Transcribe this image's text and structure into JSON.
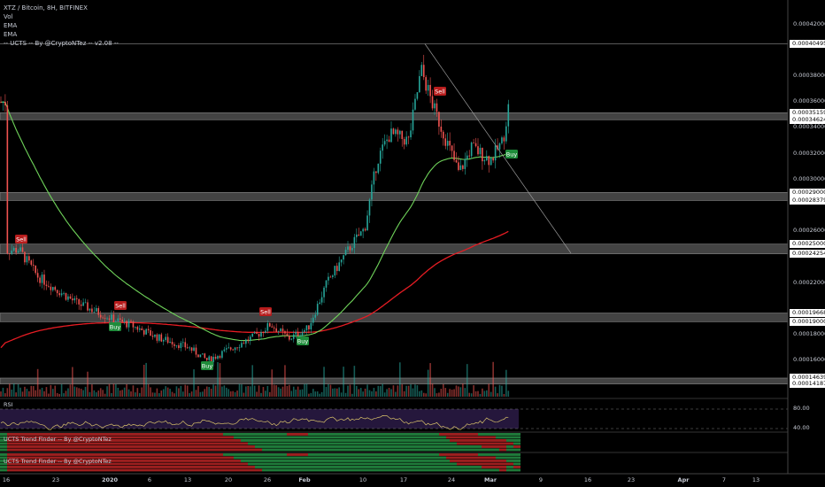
{
  "legend": {
    "pair": "XTZ / Bitcoin, 8H, BITFINEX",
    "line2": "Vol",
    "line3": "EMA",
    "line4": "EMA",
    "line5": "-- UCTS -- By @CryptoNTez -- v2.08 --"
  },
  "panes": {
    "rsi_label": "RSI",
    "trend1_label": "UCTS Trend Finder -- By @CryptoNTez",
    "trend2_label": "UCTS Trend Finder -- By @CryptoNTez"
  },
  "price_axis": {
    "labels": [
      "0.00042000",
      "0.00038000",
      "0.00036000",
      "0.00034000",
      "0.00032000",
      "0.00030000",
      "0.00026000",
      "0.00022000",
      "0.00018000",
      "0.00016000"
    ],
    "highlighted": [
      "0.00040495",
      "0.00035159",
      "0.00034624",
      "0.00029000",
      "0.00028379",
      "0.00025000",
      "0.00024254",
      "0.00019668",
      "0.00019000",
      "0.00014639",
      "0.00014187"
    ]
  },
  "rsi_axis": {
    "labels": [
      "80.00",
      "40.00"
    ]
  },
  "date_axis": {
    "labels": [
      {
        "text": "16",
        "bold": false
      },
      {
        "text": "23",
        "bold": false
      },
      {
        "text": "2020",
        "bold": true
      },
      {
        "text": "6",
        "bold": false
      },
      {
        "text": "13",
        "bold": false
      },
      {
        "text": "20",
        "bold": false
      },
      {
        "text": "26",
        "bold": false
      },
      {
        "text": "Feb",
        "bold": true
      },
      {
        "text": "10",
        "bold": false
      },
      {
        "text": "17",
        "bold": false
      },
      {
        "text": "24",
        "bold": false
      },
      {
        "text": "Mar",
        "bold": true
      },
      {
        "text": "9",
        "bold": false
      },
      {
        "text": "16",
        "bold": false
      },
      {
        "text": "23",
        "bold": false
      },
      {
        "text": "Apr",
        "bold": true
      },
      {
        "text": "7",
        "bold": false
      },
      {
        "text": "13",
        "bold": false
      }
    ]
  },
  "signals": [
    {
      "label": "Sell",
      "type": "sell"
    },
    {
      "label": "Sell",
      "type": "sell"
    },
    {
      "label": "Buy",
      "type": "buy"
    },
    {
      "label": "Buy",
      "type": "buy"
    },
    {
      "label": "Sell",
      "type": "sell"
    },
    {
      "label": "Buy",
      "type": "buy"
    },
    {
      "label": "Sell",
      "type": "sell"
    },
    {
      "label": "Buy",
      "type": "buy"
    }
  ],
  "colors": {
    "up": "#26a69a",
    "down": "#ef5350",
    "ema_fast": "#6fd35a",
    "ema_slow": "#e51c23",
    "zone": "#8a8a8a",
    "rsi_line": "#d8c26a",
    "rsi_band": "#2c1b46",
    "buy": "#1e8c3a",
    "sell": "#b71c1c"
  },
  "chart_data": {
    "type": "candlestick",
    "title": "XTZ / Bitcoin, 8H, BITFINEX",
    "ylim": [
      0.000132,
      0.000432
    ],
    "support_resistance_levels": [
      0.00035159,
      0.00034624,
      0.00029,
      0.00028379,
      0.00025,
      0.00024254,
      0.00019668,
      0.00019,
      0.00014639,
      0.00014187
    ],
    "rsi_levels": [
      80,
      40
    ],
    "price_path": [
      {
        "date": "Dec 16",
        "price": 0.000245
      },
      {
        "date": "Dec 18",
        "price": 0.000246
      },
      {
        "date": "Dec 21",
        "price": 0.000225
      },
      {
        "date": "Dec 27",
        "price": 0.000205
      },
      {
        "date": "Jan 1",
        "price": 0.000192
      },
      {
        "date": "Jan 4",
        "price": 0.000187
      },
      {
        "date": "Jan 8",
        "price": 0.000178
      },
      {
        "date": "Jan 13",
        "price": 0.00017
      },
      {
        "date": "Jan 16",
        "price": 0.00016
      },
      {
        "date": "Jan 20",
        "price": 0.00017
      },
      {
        "date": "Jan 24",
        "price": 0.00018
      },
      {
        "date": "Jan 26",
        "price": 0.000188
      },
      {
        "date": "Jan 29",
        "price": 0.000177
      },
      {
        "date": "Feb 1",
        "price": 0.000185
      },
      {
        "date": "Feb 4",
        "price": 0.00022
      },
      {
        "date": "Feb 8",
        "price": 0.00025
      },
      {
        "date": "Feb 10",
        "price": 0.000262
      },
      {
        "date": "Feb 12",
        "price": 0.000315
      },
      {
        "date": "Feb 14",
        "price": 0.000335
      },
      {
        "date": "Feb 17",
        "price": 0.00033
      },
      {
        "date": "Feb 19",
        "price": 0.000385
      },
      {
        "date": "Feb 20",
        "price": 0.00037
      },
      {
        "date": "Feb 21",
        "price": 0.000355
      },
      {
        "date": "Feb 23",
        "price": 0.00033
      },
      {
        "date": "Feb 25",
        "price": 0.000305
      },
      {
        "date": "Feb 27",
        "price": 0.000325
      },
      {
        "date": "Mar 1",
        "price": 0.000315
      },
      {
        "date": "Mar 3",
        "price": 0.00033
      },
      {
        "date": "Mar 4",
        "price": 0.00036
      }
    ]
  }
}
